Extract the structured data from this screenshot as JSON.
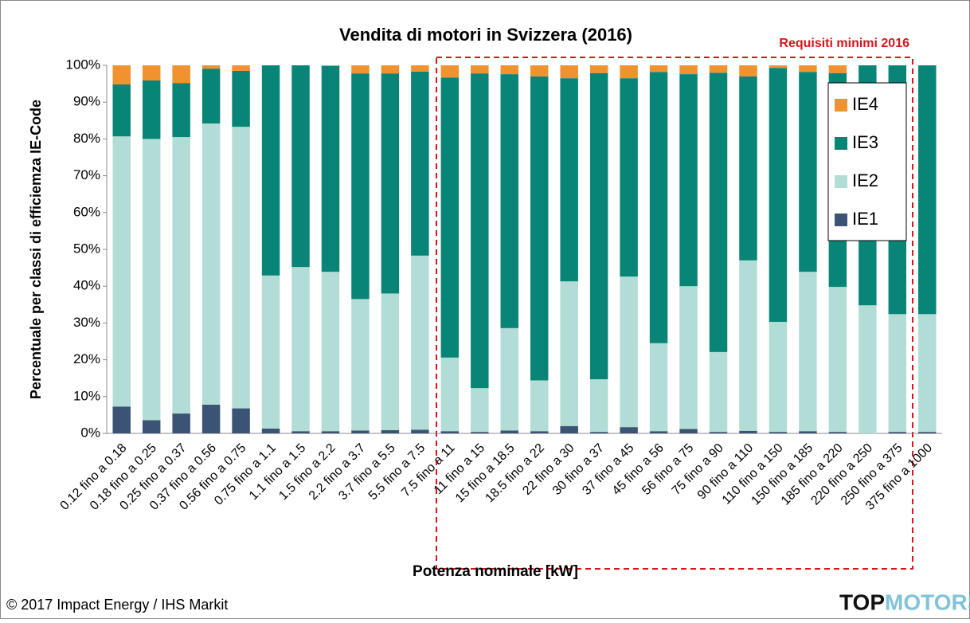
{
  "chart_data": {
    "type": "stacked_bar",
    "title": "Vendita di motori in Svizzera (2016)",
    "annotation": "Requisiti minimi 2016",
    "xlabel": "Potenza nominale [kW]",
    "ylabel": "Percentuale per classi di efficiemza  IE-Code",
    "footer": "© 2017 Impact Energy / IHS Markit",
    "logo": [
      "TOP",
      "MOTORS"
    ],
    "categories": [
      "0.12 fino a 0.18",
      "0.18 fino a 0.25",
      "0.25 fino a 0.37",
      "0.37 fino a 0.56",
      "0.56 fino a 0.75",
      "0.75 fino a 1.1",
      "1.1 fino a 1.5",
      "1.5 fino a 2.2",
      "2.2 fino a 3.7",
      "3.7 fino a 5.5",
      "5.5 fino a 7.5",
      "7.5 fino a 11",
      "11 fino a 15",
      "15 fino a 18.5",
      "18.5 fino a 22",
      "22 fino a 30",
      "30 fino a 37",
      "37 fino a 45",
      "45 fino a 56",
      "56 fino a 75",
      "75 fino a 90",
      "90 fino a 110",
      "110 fino a 150",
      "150 fino a 185",
      "185 fino a 220",
      "220 fino a 250",
      "250 fino a 375",
      "375 fino a 1000"
    ],
    "series": [
      {
        "name": "IE1",
        "color": "#3b5475",
        "values": [
          7.3,
          3.6,
          5.4,
          7.8,
          6.8,
          1.3,
          0.6,
          0.6,
          0.8,
          0.9,
          1.0,
          0.6,
          0.4,
          0.8,
          0.6,
          2.0,
          0.4,
          1.7,
          0.6,
          1.2,
          0.4,
          0.7,
          0.4,
          0.6,
          0.4,
          0.0,
          0.4,
          0.4
        ]
      },
      {
        "name": "IE2",
        "color": "#b2ddd6",
        "values": [
          73.4,
          76.4,
          75.1,
          76.4,
          76.5,
          41.6,
          44.6,
          43.3,
          35.7,
          37.1,
          47.3,
          20.0,
          11.9,
          27.8,
          13.8,
          39.3,
          14.3,
          40.9,
          23.9,
          38.8,
          21.7,
          46.3,
          29.9,
          43.3,
          39.4,
          34.8,
          32.0,
          32.0
        ]
      },
      {
        "name": "IE3",
        "color": "#088577",
        "values": [
          14.1,
          15.9,
          14.7,
          14.9,
          15.2,
          57.1,
          54.8,
          55.9,
          61.3,
          59.8,
          50.0,
          76.1,
          85.5,
          69.0,
          82.6,
          55.2,
          83.2,
          53.9,
          73.7,
          57.6,
          75.9,
          50.0,
          69.0,
          54.3,
          58.1,
          65.2,
          67.6,
          67.6
        ]
      },
      {
        "name": "IE4",
        "color": "#f0922d",
        "values": [
          5.2,
          4.1,
          4.8,
          0.9,
          1.5,
          0.0,
          0.0,
          0.2,
          2.2,
          2.2,
          1.7,
          3.3,
          2.2,
          2.4,
          3.0,
          3.5,
          2.1,
          3.5,
          1.8,
          2.4,
          2.0,
          3.0,
          0.7,
          1.8,
          2.1,
          0.0,
          0.0,
          0.0
        ]
      }
    ],
    "ylim": [
      0,
      100
    ],
    "yticks": [
      {
        "value": 0,
        "label": "0%"
      },
      {
        "value": 10,
        "label": "10%"
      },
      {
        "value": 20,
        "label": "20%"
      },
      {
        "value": 30,
        "label": "30%"
      },
      {
        "value": 40,
        "label": "40%"
      },
      {
        "value": 50,
        "label": "50%"
      },
      {
        "value": 60,
        "label": "60%"
      },
      {
        "value": 70,
        "label": "70%"
      },
      {
        "value": 80,
        "label": "80%"
      },
      {
        "value": 90,
        "label": "90%"
      },
      {
        "value": 100,
        "label": "100%"
      }
    ],
    "legend": "upper right",
    "grid": false
  }
}
